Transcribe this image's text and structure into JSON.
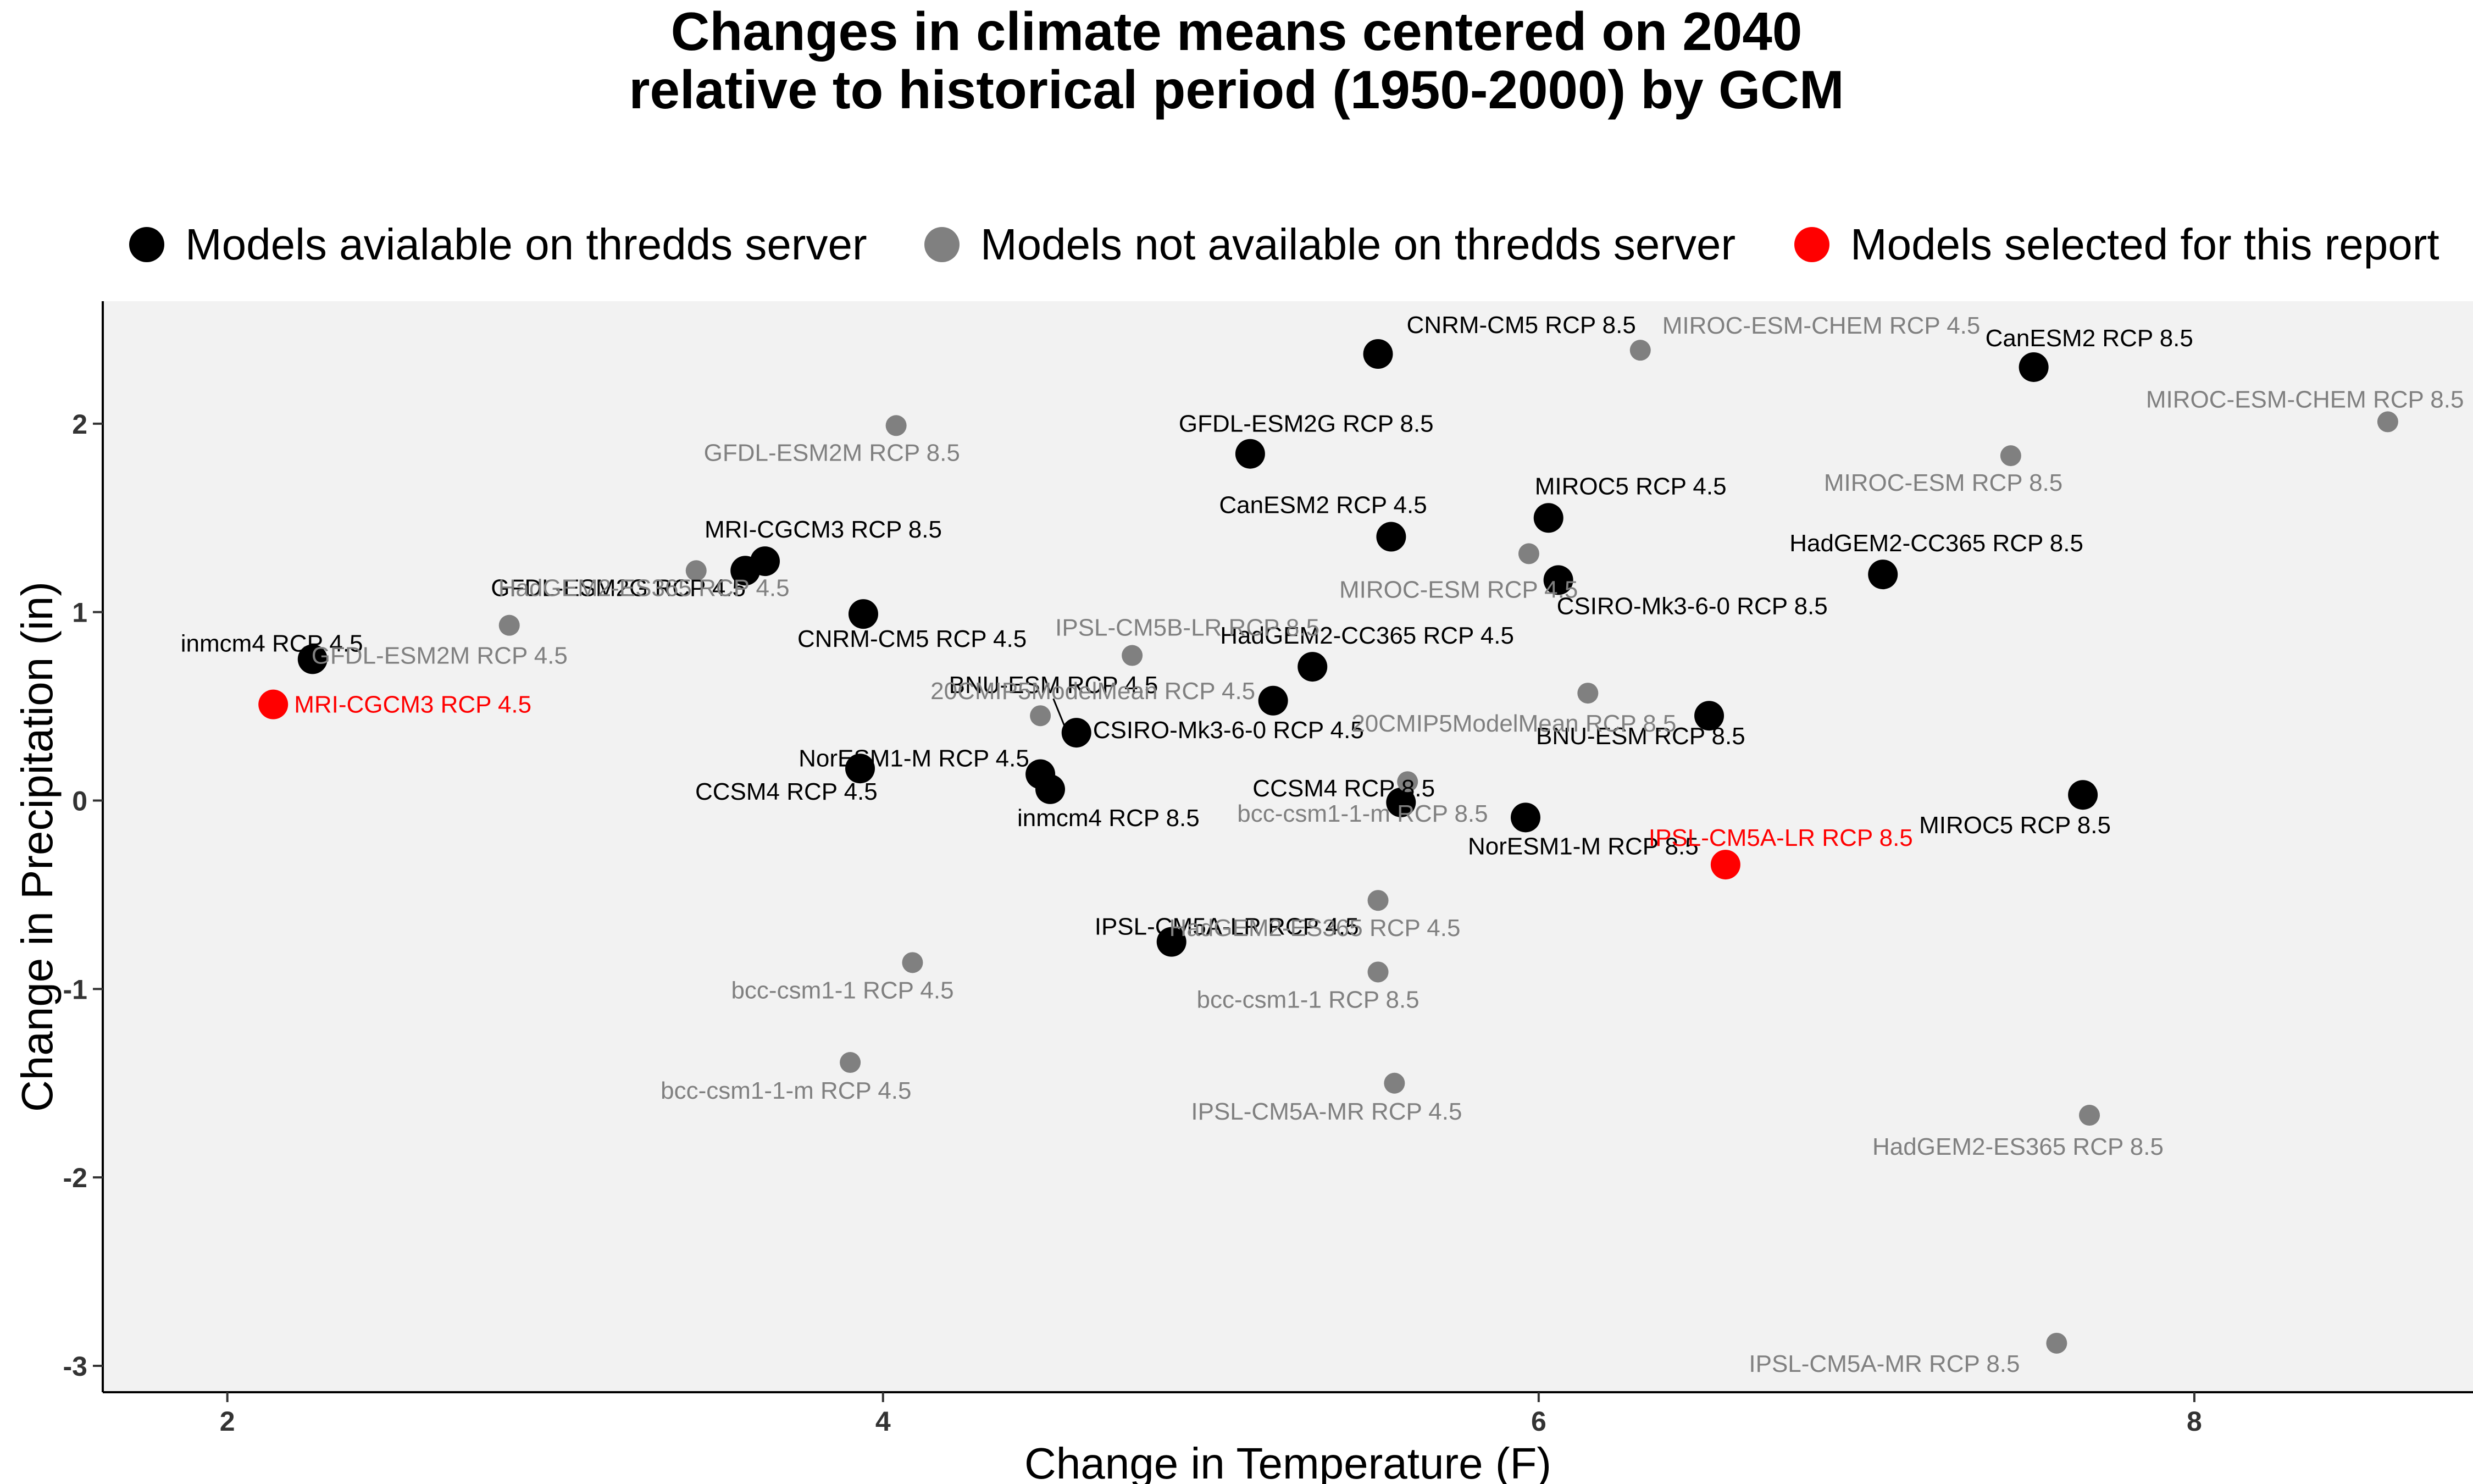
{
  "chart_data": {
    "type": "scatter",
    "title": [
      "Changes in climate means centered on 2040",
      "relative to historical period (1950-2000) by GCM"
    ],
    "xlabel": "Change in Temperature (F)",
    "ylabel": "Change in Precipitation (in)",
    "xlim": [
      1.62,
      8.85
    ],
    "ylim": [
      -3.14,
      2.65
    ],
    "x_ticks": [
      2,
      4,
      6,
      8
    ],
    "y_ticks": [
      -3,
      -2,
      -1,
      0,
      1,
      2
    ],
    "grid": false,
    "legend_position": "top",
    "colors": {
      "available": "#000000",
      "not_available": "#808080",
      "selected": "#ff0000"
    },
    "legend": [
      {
        "key": "available",
        "label": "Models avialable on thredds server"
      },
      {
        "key": "not_available",
        "label": "Models not available on thredds server"
      },
      {
        "key": "selected",
        "label": "Models selected for this report"
      }
    ],
    "points": [
      {
        "label": "CNRM-CM5 RCP 8.5",
        "x": 5.51,
        "y": 2.37,
        "group": "available"
      },
      {
        "label": "CanESM2 RCP 8.5",
        "x": 7.51,
        "y": 2.3,
        "group": "available"
      },
      {
        "label": "GFDL-ESM2G RCP 8.5",
        "x": 5.12,
        "y": 1.84,
        "group": "available"
      },
      {
        "label": "MIROC5 RCP 4.5",
        "x": 6.03,
        "y": 1.5,
        "group": "available"
      },
      {
        "label": "CanESM2 RCP 4.5",
        "x": 5.55,
        "y": 1.4,
        "group": "available"
      },
      {
        "label": "HadGEM2-CC365 RCP 8.5",
        "x": 7.05,
        "y": 1.2,
        "group": "available"
      },
      {
        "label": "CSIRO-Mk3-6-0 RCP 8.5",
        "x": 6.06,
        "y": 1.17,
        "group": "available"
      },
      {
        "label": "MRI-CGCM3 RCP 8.5",
        "x": 3.64,
        "y": 1.27,
        "group": "available"
      },
      {
        "label": "GFDL-ESM2G RCP 4.5",
        "x": 3.58,
        "y": 1.22,
        "group": "available"
      },
      {
        "label": "CNRM-CM5 RCP 4.5",
        "x": 3.94,
        "y": 0.99,
        "group": "available"
      },
      {
        "label": "inmcm4 RCP 4.5",
        "x": 2.26,
        "y": 0.75,
        "group": "available"
      },
      {
        "label": "HadGEM2-CC365 RCP 4.5",
        "x": 5.31,
        "y": 0.71,
        "group": "available"
      },
      {
        "label": "BNU-ESM RCP 4.5",
        "x": 5.19,
        "y": 0.53,
        "group": "available"
      },
      {
        "label": "BNU-ESM RCP 8.5",
        "x": 6.52,
        "y": 0.45,
        "group": "available"
      },
      {
        "label": "CSIRO-Mk3-6-0 RCP 4.5",
        "x": 4.59,
        "y": 0.36,
        "group": "available"
      },
      {
        "label": "CCSM4 RCP 4.5",
        "x": 3.93,
        "y": 0.17,
        "group": "available"
      },
      {
        "label": "NorESM1-M RCP 4.5",
        "x": 4.48,
        "y": 0.14,
        "group": "available"
      },
      {
        "label": "inmcm4 RCP 8.5",
        "x": 4.51,
        "y": 0.06,
        "group": "available"
      },
      {
        "label": "MIROC5 RCP 8.5",
        "x": 7.66,
        "y": 0.03,
        "group": "available"
      },
      {
        "label": "CCSM4 RCP 8.5",
        "x": 5.58,
        "y": -0.01,
        "group": "available"
      },
      {
        "label": "NorESM1-M RCP 8.5",
        "x": 5.96,
        "y": -0.09,
        "group": "available"
      },
      {
        "label": "IPSL-CM5A-LR RCP 4.5",
        "x": 4.88,
        "y": -0.75,
        "group": "available"
      },
      {
        "label": "MRI-CGCM3 RCP 4.5",
        "x": 2.14,
        "y": 0.51,
        "group": "selected"
      },
      {
        "label": "IPSL-CM5A-LR RCP 8.5",
        "x": 6.57,
        "y": -0.34,
        "group": "selected"
      },
      {
        "label": "MIROC-ESM-CHEM RCP 4.5",
        "x": 6.31,
        "y": 2.39,
        "group": "not_available"
      },
      {
        "label": "MIROC-ESM-CHEM RCP 8.5",
        "x": 8.59,
        "y": 2.01,
        "group": "not_available"
      },
      {
        "label": "GFDL-ESM2M RCP 8.5",
        "x": 4.04,
        "y": 1.99,
        "group": "not_available"
      },
      {
        "label": "MIROC-ESM RCP 8.5",
        "x": 7.44,
        "y": 1.83,
        "group": "not_available"
      },
      {
        "label": "MIROC-ESM RCP 4.5",
        "x": 5.97,
        "y": 1.31,
        "group": "not_available"
      },
      {
        "label": "HadGEM2-ES365 RCP 4.5",
        "x": 3.43,
        "y": 1.22,
        "group": "not_available"
      },
      {
        "label": "GFDL-ESM2M RCP 4.5",
        "x": 2.86,
        "y": 0.93,
        "group": "not_available"
      },
      {
        "label": "IPSL-CM5B-LR RCP 8.5",
        "x": 4.76,
        "y": 0.77,
        "group": "not_available"
      },
      {
        "label": "20CMIP5ModelMean RCP 8.5",
        "x": 6.15,
        "y": 0.57,
        "group": "not_available"
      },
      {
        "label": "20CMIP5ModelMean RCP 4.5",
        "x": 4.48,
        "y": 0.45,
        "group": "not_available"
      },
      {
        "label": "bcc-csm1-1-m RCP 8.5",
        "x": 5.6,
        "y": 0.1,
        "group": "not_available"
      },
      {
        "label": "HadGEM2-ES365 RCP 4.5",
        "x": 5.51,
        "y": -0.53,
        "group": "not_available"
      },
      {
        "label": "bcc-csm1-1 RCP 4.5",
        "x": 4.09,
        "y": -0.86,
        "group": "not_available"
      },
      {
        "label": "bcc-csm1-1 RCP 8.5",
        "x": 5.51,
        "y": -0.91,
        "group": "not_available"
      },
      {
        "label": "bcc-csm1-1-m RCP 4.5",
        "x": 3.9,
        "y": -1.39,
        "group": "not_available"
      },
      {
        "label": "IPSL-CM5A-MR RCP 4.5",
        "x": 5.56,
        "y": -1.5,
        "group": "not_available"
      },
      {
        "label": "HadGEM2-ES365 RCP 8.5",
        "x": 7.68,
        "y": -1.67,
        "group": "not_available"
      },
      {
        "label": "IPSL-CM5A-MR RCP 8.5",
        "x": 7.58,
        "y": -2.88,
        "group": "not_available"
      }
    ]
  }
}
